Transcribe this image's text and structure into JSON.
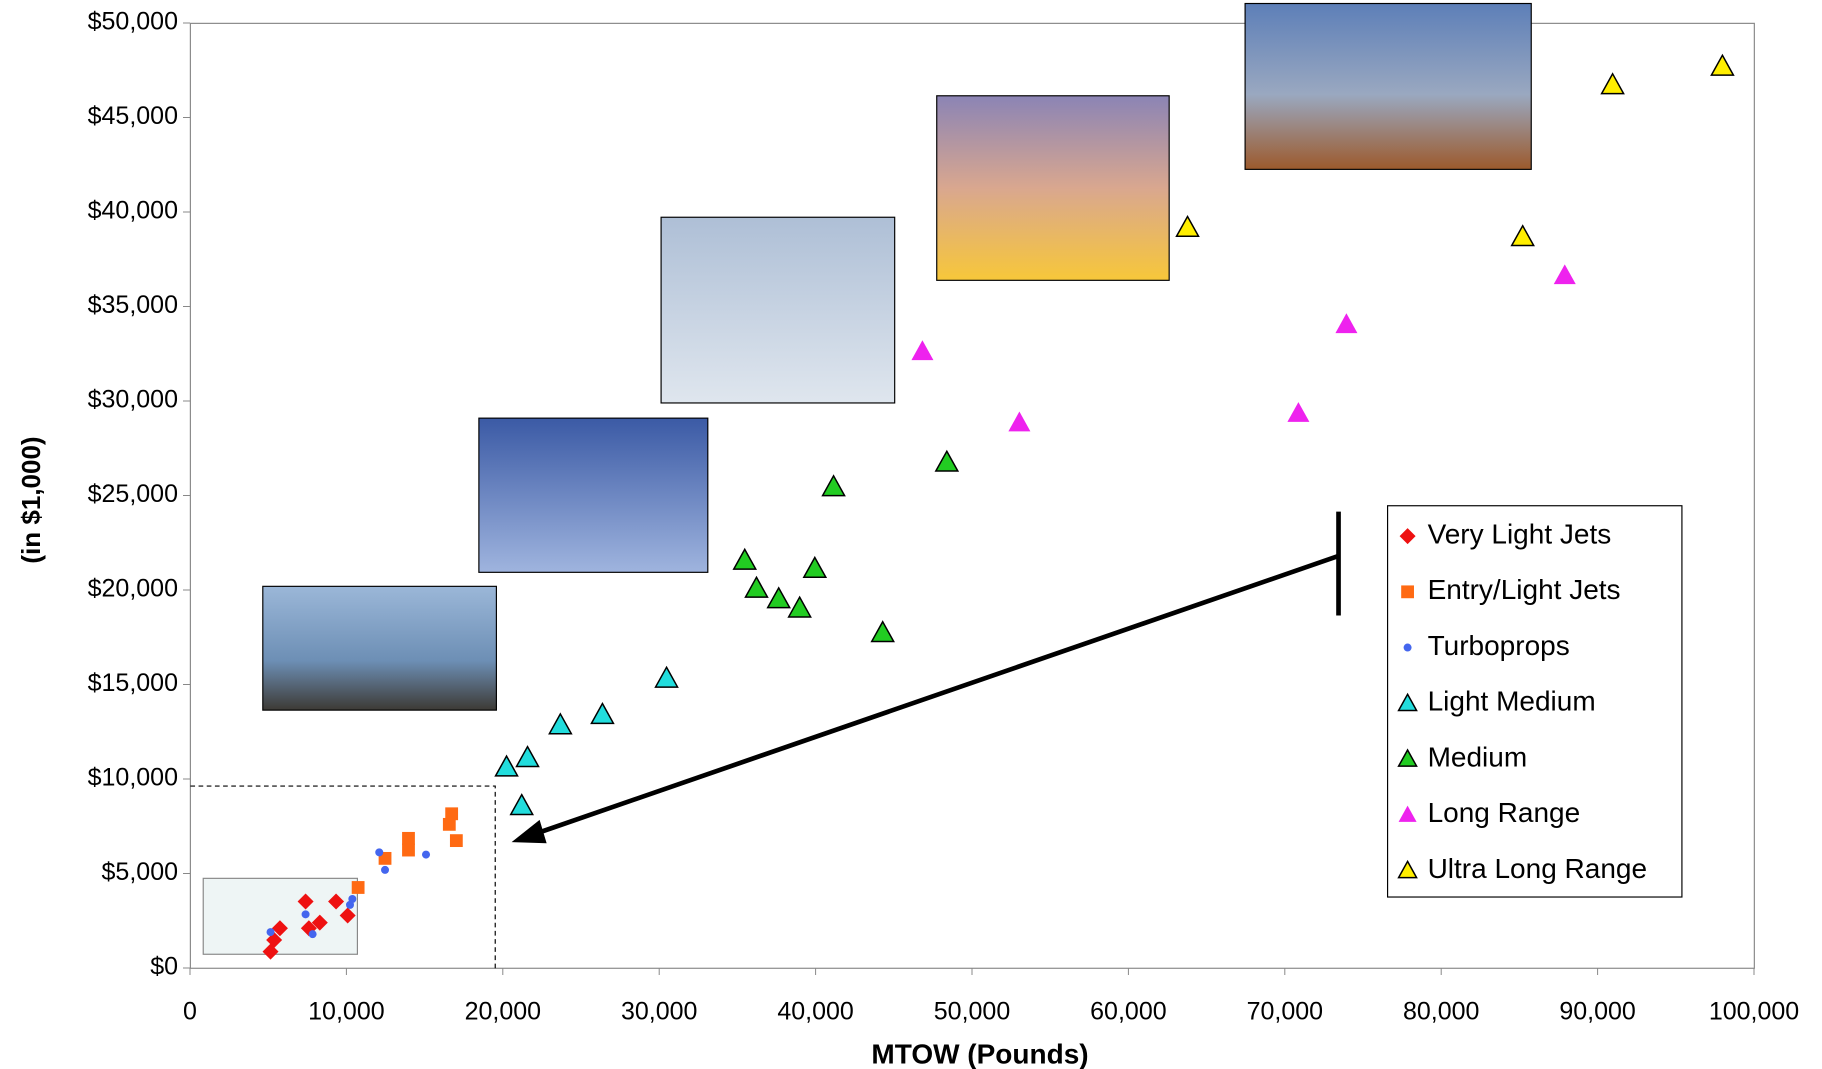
{
  "chart_data": {
    "type": "scatter",
    "xlabel": "MTOW (Pounds)",
    "ylabel": "(in $1,000)",
    "xlim": [
      0,
      100000
    ],
    "ylim": [
      0,
      50000
    ],
    "xticks": [
      0,
      {
        "value": 10000,
        "label": "10,000"
      },
      {
        "value": 20000,
        "label": "20,000"
      },
      {
        "value": 30000,
        "label": "30,000"
      },
      {
        "value": 40000,
        "label": "40,000"
      },
      {
        "value": 50000,
        "label": "50,000"
      },
      {
        "value": 60000,
        "label": "60,000"
      },
      {
        "value": 70000,
        "label": "70,000"
      },
      {
        "value": 80000,
        "label": "80,000"
      },
      {
        "value": 90000,
        "label": "90,000"
      },
      {
        "value": 100000,
        "label": "100,000"
      }
    ],
    "yticks": [
      {
        "value": 0,
        "label": "$0"
      },
      {
        "value": 5000,
        "label": "$5,000"
      },
      {
        "value": 10000,
        "label": "$10,000"
      },
      {
        "value": 15000,
        "label": "$15,000"
      },
      {
        "value": 20000,
        "label": "$20,000"
      },
      {
        "value": 25000,
        "label": "$25,000"
      },
      {
        "value": 30000,
        "label": "$30,000"
      },
      {
        "value": 35000,
        "label": "$35,000"
      },
      {
        "value": 40000,
        "label": "$40,000"
      },
      {
        "value": 45000,
        "label": "$45,000"
      },
      {
        "value": 50000,
        "label": "$50,000"
      }
    ],
    "grid": false,
    "legend": "lower right",
    "series": [
      {
        "name": "Very Light Jets",
        "color": "#ee1111",
        "marker": "diamond",
        "x": [
          5150,
          5380,
          5750,
          7390,
          7600,
          8300,
          9340,
          10080
        ],
        "values": [
          865,
          1480,
          2100,
          3520,
          2100,
          2400,
          3520,
          2780
        ]
      },
      {
        "name": "Entry/Light Jets",
        "color": "#ff6a13",
        "marker": "square",
        "x": [
          10750,
          12470,
          13970,
          13970,
          16580,
          16730,
          17030
        ],
        "values": [
          4260,
          5800,
          6860,
          6240,
          7600,
          8160,
          6740
        ]
      },
      {
        "name": "Turboprops",
        "color": "#4466ee",
        "marker": "circle",
        "x": [
          5150,
          7390,
          7840,
          10230,
          10380,
          12100,
          12470,
          15090
        ],
        "values": [
          1900,
          2840,
          1790,
          3340,
          3650,
          6120,
          5190,
          6000
        ]
      },
      {
        "name": "Light Medium",
        "color": "#22dddd",
        "marker": "triangle",
        "edgecolor": "#000000",
        "x": [
          20240,
          21580,
          21210,
          23680,
          26370,
          30470
        ],
        "values": [
          10630,
          11130,
          8590,
          12860,
          13410,
          15330
        ]
      },
      {
        "name": "Medium",
        "color": "#22cc22",
        "marker": "triangle",
        "edgecolor": "#000000",
        "x": [
          35470,
          36220,
          37640,
          38980,
          39950,
          41150,
          44290,
          48390
        ],
        "values": [
          21570,
          20090,
          19530,
          19040,
          21140,
          25460,
          17740,
          26760
        ]
      },
      {
        "name": "Long Range",
        "color": "#ee22ee",
        "marker": "triangle",
        "x": [
          46830,
          53030,
          70870,
          73940,
          87900
        ],
        "values": [
          32630,
          28860,
          29360,
          34060,
          36650
        ]
      },
      {
        "name": "Ultra Long Range",
        "color": "#ffee00",
        "marker": "triangle",
        "edgecolor": "#000000",
        "x": [
          63780,
          85210,
          90960,
          97980
        ],
        "values": [
          39180,
          38690,
          46730,
          47710
        ]
      }
    ]
  }
}
